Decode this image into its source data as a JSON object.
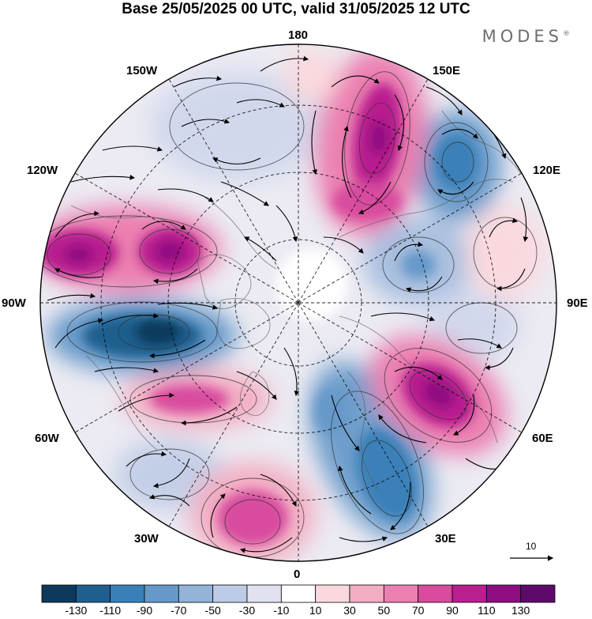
{
  "title": "Base 25/05/2025 00 UTC, valid 31/05/2025 12 UTC",
  "brand": "MODES",
  "brand_mark": "®",
  "longitude_labels": {
    "top": "180",
    "bottom": "0",
    "left": "90W",
    "right": "90E",
    "upper_left_1": "150W",
    "upper_left_2": "120W",
    "upper_right_1": "150E",
    "upper_right_2": "120E",
    "lower_left_1": "60W",
    "lower_left_2": "30W",
    "lower_right_1": "60E",
    "lower_right_2": "30E"
  },
  "colorbar": {
    "levels": [
      "-130",
      "-110",
      "-90",
      "-70",
      "-50",
      "-30",
      "-10",
      "10",
      "30",
      "50",
      "70",
      "90",
      "110",
      "130"
    ],
    "colors": [
      "#0d3a5c",
      "#1f5f8f",
      "#3a80b8",
      "#6699c9",
      "#93b3d8",
      "#bccbe6",
      "#e0e2f0",
      "#ffffff",
      "#f9d9de",
      "#f3aec2",
      "#eb7fb0",
      "#d84b9f",
      "#b81f8f",
      "#8e0d80",
      "#5e0a6a"
    ]
  },
  "vector_scale": "10",
  "colors": {
    "negative_strong": "#1f5f8f",
    "negative_mid": "#6699c9",
    "negative_weak": "#bccbe6",
    "positive_weak": "#f3aec2",
    "positive_mid": "#d84b9f",
    "positive_strong": "#8e0d80"
  }
}
